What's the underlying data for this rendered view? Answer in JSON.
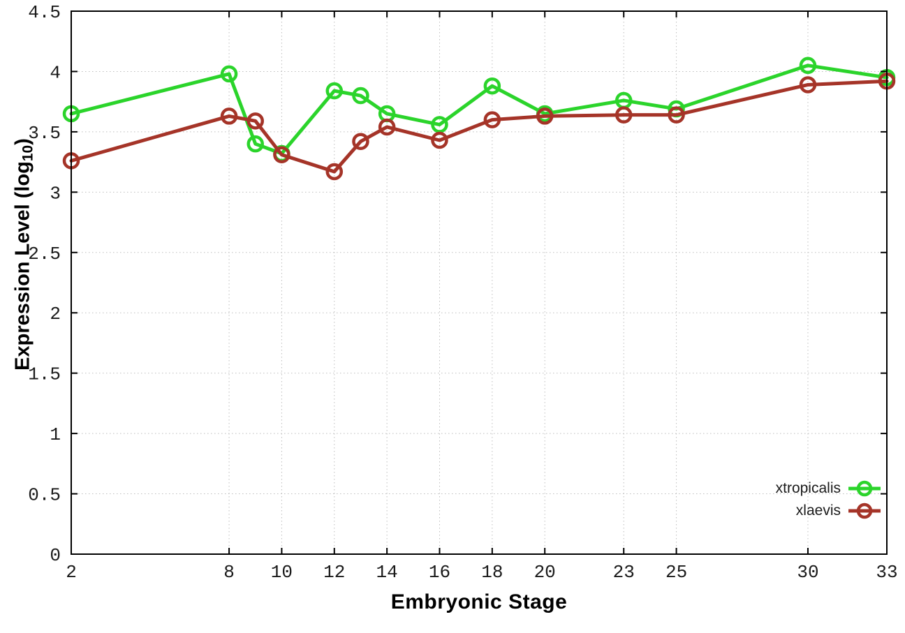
{
  "chart_data": {
    "type": "line",
    "title": "",
    "xlabel": "Embryonic Stage",
    "ylabel_prefix": "Expression Level (log",
    "ylabel_sub": "10",
    "ylabel_suffix": ")",
    "xlim": [
      2,
      33
    ],
    "ylim": [
      0,
      4.5
    ],
    "xticks": [
      2,
      8,
      10,
      12,
      14,
      16,
      18,
      20,
      23,
      25,
      30,
      33
    ],
    "xtick_labels": [
      "2",
      "8",
      "10",
      "12",
      "14",
      "16",
      "18",
      "20",
      "23",
      "25",
      "30",
      "33"
    ],
    "yticks": [
      0,
      0.5,
      1,
      1.5,
      2,
      2.5,
      3,
      3.5,
      4,
      4.5
    ],
    "ytick_labels": [
      "0",
      "0.5",
      "1",
      "1.5",
      "2",
      "2.5",
      "3",
      "3.5",
      "4",
      "4.5"
    ],
    "grid": true,
    "grid_style": "dotted",
    "legend_position": "bottom-right-inside",
    "marker": "open-circle",
    "series": [
      {
        "name": "xtropicalis",
        "color": "#2bd42b",
        "points": [
          [
            2,
            3.65
          ],
          [
            8,
            3.98
          ],
          [
            9,
            3.4
          ],
          [
            10,
            3.32
          ],
          [
            12,
            3.84
          ],
          [
            13,
            3.8
          ],
          [
            14,
            3.65
          ],
          [
            16,
            3.56
          ],
          [
            18,
            3.88
          ],
          [
            20,
            3.65
          ],
          [
            23,
            3.76
          ],
          [
            25,
            3.69
          ],
          [
            30,
            4.05
          ],
          [
            33,
            3.95
          ]
        ]
      },
      {
        "name": "xlaevis",
        "color": "#a53428",
        "points": [
          [
            2,
            3.26
          ],
          [
            8,
            3.63
          ],
          [
            9,
            3.59
          ],
          [
            10,
            3.31
          ],
          [
            12,
            3.17
          ],
          [
            13,
            3.42
          ],
          [
            14,
            3.54
          ],
          [
            16,
            3.43
          ],
          [
            18,
            3.6
          ],
          [
            20,
            3.63
          ],
          [
            23,
            3.64
          ],
          [
            25,
            3.64
          ],
          [
            30,
            3.89
          ],
          [
            33,
            3.92
          ]
        ]
      }
    ]
  },
  "colors": {
    "background": "#ffffff",
    "axis": "#000000",
    "grid": "#bdbdbd",
    "tick_text": "#1a1a1a"
  }
}
